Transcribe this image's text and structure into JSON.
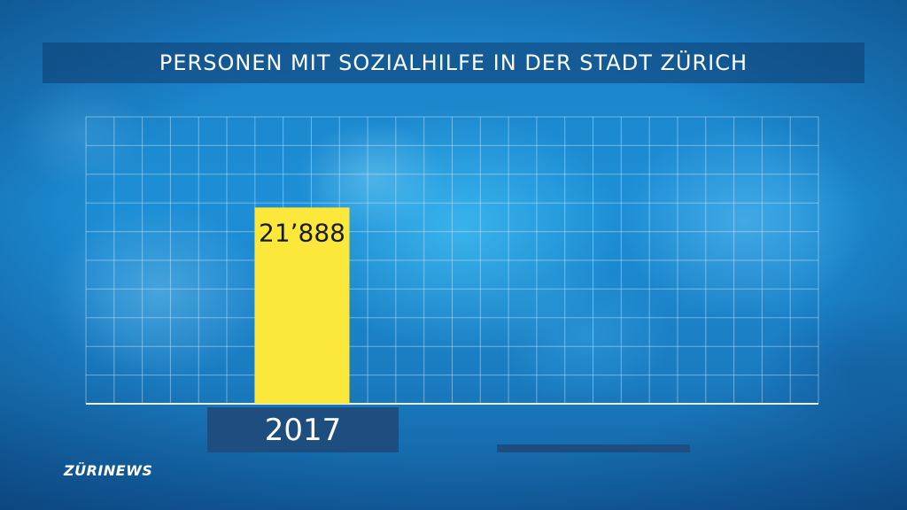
{
  "header": {
    "title": "PERSONEN MIT SOZIALHILFE IN DER STADT ZÜRICH"
  },
  "chart_data": {
    "type": "bar",
    "title": "PERSONEN MIT SOZIALHILFE IN DER STADT ZÜRICH",
    "categories": [
      "2017"
    ],
    "values": [
      21888
    ],
    "data_labels": [
      "21’888"
    ],
    "xlabel": "",
    "ylabel": "",
    "ylim": [
      0,
      32000
    ],
    "grid": true,
    "bar_color": "#fbe83a",
    "grid_color": "#d4f0ff"
  },
  "footer": {
    "year_label": "2017",
    "logo": "ZÜRINEWS"
  }
}
